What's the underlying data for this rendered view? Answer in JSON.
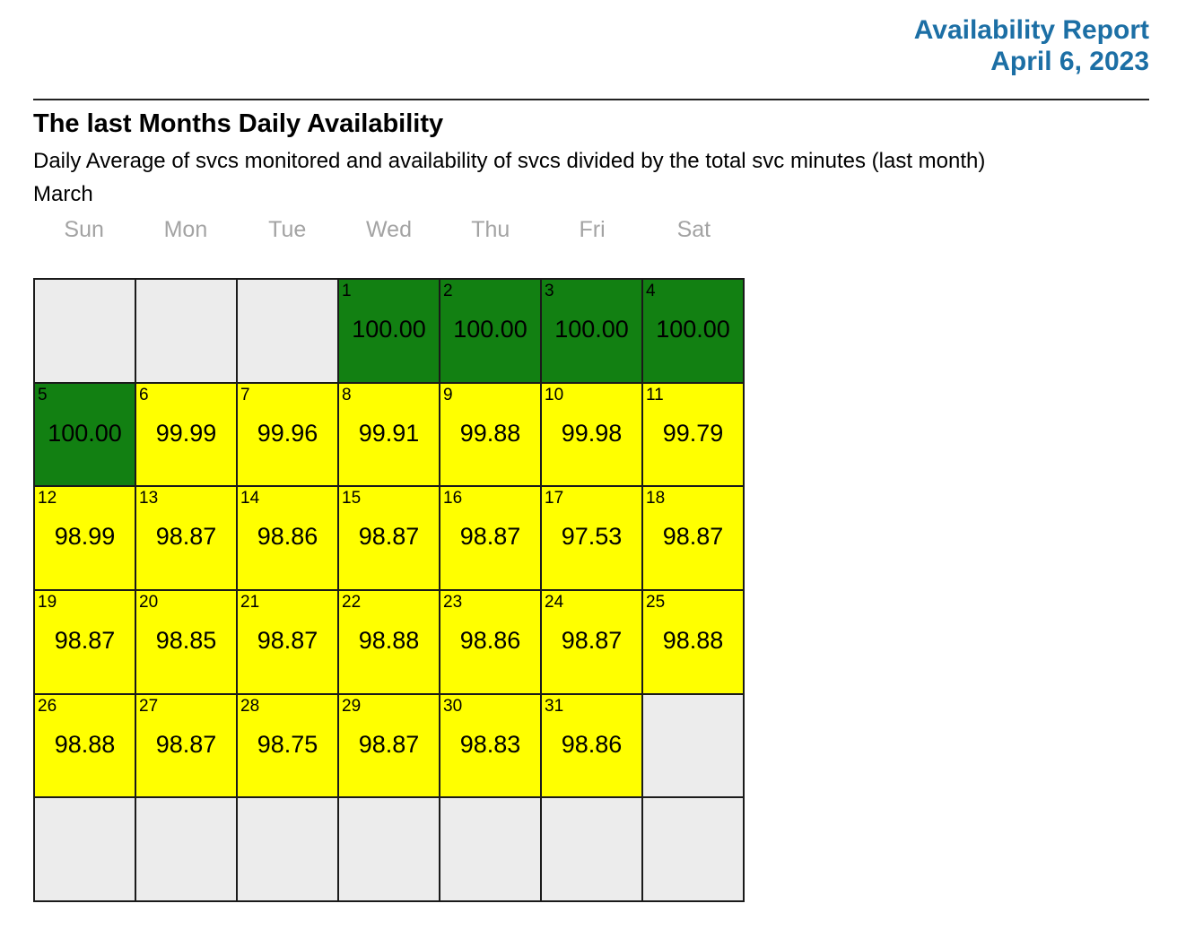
{
  "header": {
    "title": "Availability Report",
    "date": "April 6, 2023"
  },
  "report": {
    "title": "The last Months Daily Availability",
    "subtitle": "Daily Average of svcs monitored and availability of svcs divided by the total svc minutes (last month)",
    "month": "March"
  },
  "calendar": {
    "weekdays": [
      "Sun",
      "Mon",
      "Tue",
      "Wed",
      "Thu",
      "Fri",
      "Sat"
    ],
    "cells": [
      {
        "day": "",
        "value": "",
        "state": "blank"
      },
      {
        "day": "",
        "value": "",
        "state": "blank"
      },
      {
        "day": "",
        "value": "",
        "state": "blank"
      },
      {
        "day": "1",
        "value": "100.00",
        "state": "full"
      },
      {
        "day": "2",
        "value": "100.00",
        "state": "full"
      },
      {
        "day": "3",
        "value": "100.00",
        "state": "full"
      },
      {
        "day": "4",
        "value": "100.00",
        "state": "full"
      },
      {
        "day": "5",
        "value": "100.00",
        "state": "full"
      },
      {
        "day": "6",
        "value": "99.99",
        "state": "partial"
      },
      {
        "day": "7",
        "value": "99.96",
        "state": "partial"
      },
      {
        "day": "8",
        "value": "99.91",
        "state": "partial"
      },
      {
        "day": "9",
        "value": "99.88",
        "state": "partial"
      },
      {
        "day": "10",
        "value": "99.98",
        "state": "partial"
      },
      {
        "day": "11",
        "value": "99.79",
        "state": "partial"
      },
      {
        "day": "12",
        "value": "98.99",
        "state": "partial"
      },
      {
        "day": "13",
        "value": "98.87",
        "state": "partial"
      },
      {
        "day": "14",
        "value": "98.86",
        "state": "partial"
      },
      {
        "day": "15",
        "value": "98.87",
        "state": "partial"
      },
      {
        "day": "16",
        "value": "98.87",
        "state": "partial"
      },
      {
        "day": "17",
        "value": "97.53",
        "state": "partial"
      },
      {
        "day": "18",
        "value": "98.87",
        "state": "partial"
      },
      {
        "day": "19",
        "value": "98.87",
        "state": "partial"
      },
      {
        "day": "20",
        "value": "98.85",
        "state": "partial"
      },
      {
        "day": "21",
        "value": "98.87",
        "state": "partial"
      },
      {
        "day": "22",
        "value": "98.88",
        "state": "partial"
      },
      {
        "day": "23",
        "value": "98.86",
        "state": "partial"
      },
      {
        "day": "24",
        "value": "98.87",
        "state": "partial"
      },
      {
        "day": "25",
        "value": "98.88",
        "state": "partial"
      },
      {
        "day": "26",
        "value": "98.88",
        "state": "partial"
      },
      {
        "day": "27",
        "value": "98.87",
        "state": "partial"
      },
      {
        "day": "28",
        "value": "98.75",
        "state": "partial"
      },
      {
        "day": "29",
        "value": "98.87",
        "state": "partial"
      },
      {
        "day": "30",
        "value": "98.83",
        "state": "partial"
      },
      {
        "day": "31",
        "value": "98.86",
        "state": "partial"
      },
      {
        "day": "",
        "value": "",
        "state": "blank"
      },
      {
        "day": "",
        "value": "",
        "state": "blank"
      },
      {
        "day": "",
        "value": "",
        "state": "blank"
      },
      {
        "day": "",
        "value": "",
        "state": "blank"
      },
      {
        "day": "",
        "value": "",
        "state": "blank"
      },
      {
        "day": "",
        "value": "",
        "state": "blank"
      },
      {
        "day": "",
        "value": "",
        "state": "blank"
      },
      {
        "day": "",
        "value": "",
        "state": "blank"
      }
    ]
  },
  "colors": {
    "accent_blue": "#1c6fa5",
    "full_green": "#128012",
    "partial_yellow": "#ffff00",
    "empty_gray": "#ececec",
    "grid_border": "#1a1a1a",
    "weekday_gray": "#a3a3a3"
  }
}
